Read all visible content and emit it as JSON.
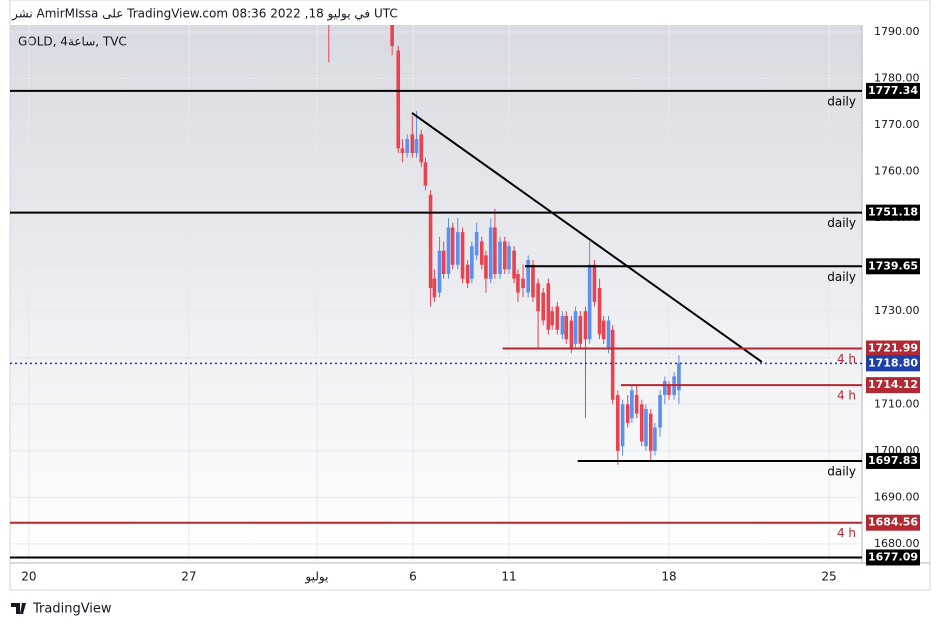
{
  "chart_data": {
    "type": "candlestick",
    "title": "نشر AmirMIssa على TradingView.com في يوليو 18, 2022 08:36 UTC",
    "subtitle": "GOLD, 4ساعة, TVC",
    "brand": "TradingView",
    "up_color": "#5b8ff0",
    "down_color": "#e8434f",
    "grid": true,
    "x": [
      9.37,
      11.35,
      11.54,
      11.67,
      11.82,
      11.98,
      12.11,
      12.26,
      12.39,
      12.55,
      12.67,
      12.83,
      12.96,
      13.11,
      13.24,
      13.4,
      13.55,
      13.71,
      13.84,
      13.99,
      14.15,
      14.28,
      14.43,
      14.56,
      14.72,
      14.87,
      15.0,
      15.16,
      15.28,
      15.44,
      15.6,
      15.75,
      15.91,
      16.07,
      16.23,
      16.35,
      16.51,
      16.67,
      16.79,
      16.95,
      17.08,
      17.23,
      17.39,
      17.52,
      17.67,
      17.83,
      17.96,
      18.11,
      18.24,
      18.4,
      18.55,
      18.71,
      18.84,
      18.99,
      19.15,
      19.28,
      19.43,
      19.56,
      19.72,
      19.87,
      20.0,
      20.16,
      20.31
    ],
    "open": [
      1800,
      1793,
      1786,
      1765,
      1764,
      1768,
      1764,
      1768,
      1762,
      1755,
      1737,
      1734,
      1743,
      1738,
      1748,
      1740,
      1747,
      1740,
      1737,
      1742,
      1745,
      1742,
      1737,
      1748,
      1738,
      1745,
      1739,
      1743,
      1738,
      1737,
      1734,
      1740,
      1736,
      1734,
      1736,
      1730,
      1731,
      1725,
      1729,
      1728,
      1723,
      1729,
      1730,
      1724,
      1740,
      1735,
      1728,
      1722,
      1726,
      1712,
      1701,
      1710,
      1707,
      1712,
      1710,
      1701,
      1708,
      1700,
      1705,
      1712,
      1714,
      1712,
      1713
    ],
    "high": [
      1802,
      1795,
      1787,
      1767,
      1768,
      1772,
      1773,
      1769,
      1763,
      1756,
      1739,
      1746,
      1745,
      1750,
      1749,
      1750,
      1748,
      1741,
      1745,
      1749,
      1746,
      1743,
      1750,
      1752,
      1746,
      1746,
      1745,
      1744,
      1739,
      1740,
      1742,
      1741,
      1737,
      1735,
      1737,
      1731,
      1732,
      1730,
      1730,
      1729,
      1731,
      1730,
      1731,
      1745,
      1741,
      1737,
      1729,
      1729,
      1727,
      1713,
      1711,
      1712,
      1714,
      1714,
      1711,
      1710,
      1709,
      1706,
      1713,
      1716,
      1715,
      1717,
      1720.5
    ],
    "low": [
      1783.5,
      1785,
      1764,
      1762,
      1763,
      1763,
      1763,
      1761,
      1756,
      1731,
      1732,
      1733,
      1737,
      1737,
      1739,
      1739,
      1736,
      1735,
      1736,
      1741,
      1739,
      1734,
      1736,
      1737,
      1737,
      1738,
      1738,
      1736,
      1732,
      1733,
      1733,
      1732,
      1722,
      1727,
      1725,
      1726,
      1725,
      1724,
      1723,
      1721,
      1722,
      1722,
      1707,
      1723,
      1731,
      1724,
      1723,
      1721,
      1710,
      1697,
      1699,
      1705,
      1706,
      1707,
      1701,
      1700,
      1698,
      1699,
      1703,
      1710,
      1711,
      1711,
      1710
    ],
    "close": [
      1794,
      1787,
      1765,
      1764,
      1767,
      1764,
      1767,
      1762,
      1757,
      1735,
      1733,
      1743,
      1738,
      1748,
      1740,
      1747,
      1737,
      1736,
      1744,
      1747,
      1740,
      1737,
      1748,
      1738,
      1745,
      1739,
      1744,
      1737,
      1734,
      1735,
      1741,
      1733,
      1730,
      1728,
      1726,
      1727,
      1726,
      1729,
      1724,
      1722,
      1730,
      1723,
      1724,
      1740,
      1732,
      1725,
      1724,
      1728,
      1711,
      1700,
      1710,
      1706,
      1713,
      1708,
      1702,
      1709,
      1700,
      1705,
      1712,
      1715,
      1712,
      1716,
      1718.8
    ],
    "xlim": [
      -0.59,
      26.03
    ],
    "xticks": [
      {
        "value": 0,
        "label": "20"
      },
      {
        "value": 5,
        "label": "27"
      },
      {
        "value": 9,
        "label": "يوليو"
      },
      {
        "value": 12,
        "label": "6"
      },
      {
        "value": 15,
        "label": "11"
      },
      {
        "value": 20,
        "label": "18"
      },
      {
        "value": 25,
        "label": "25"
      }
    ],
    "ylim": [
      1675.9,
      1791.5
    ],
    "yticks": [
      {
        "value": 1680,
        "label": "1680.00"
      },
      {
        "value": 1690,
        "label": "1690.00"
      },
      {
        "value": 1700,
        "label": "1700.00"
      },
      {
        "value": 1710,
        "label": "1710.00"
      },
      {
        "value": 1720,
        "label": "1720.00"
      },
      {
        "value": 1730,
        "label": "1730.00"
      },
      {
        "value": 1740,
        "label": "1740.00"
      },
      {
        "value": 1750,
        "label": "1750.00"
      },
      {
        "value": 1760,
        "label": "1760.00"
      },
      {
        "value": 1770,
        "label": "1770.00"
      },
      {
        "value": 1780,
        "label": "1780.00"
      },
      {
        "value": 1790,
        "label": "1790.00"
      }
    ],
    "levels": [
      {
        "value": 1777.34,
        "note": "daily",
        "color": "#000000"
      },
      {
        "value": 1751.18,
        "note": "daily",
        "color": "#000000"
      },
      {
        "value": 1739.65,
        "note": "daily",
        "color": "#000000",
        "x_start": 15.5
      },
      {
        "value": 1721.99,
        "note": "4 h",
        "color": "#b22833",
        "x_start": 14.8
      },
      {
        "value": 1714.12,
        "note": "4 h",
        "color": "#b22833",
        "x_start": 18.5
      },
      {
        "value": 1697.83,
        "note": "daily",
        "color": "#000000",
        "x_start": 17.15
      },
      {
        "value": 1684.56,
        "note": "4 h",
        "color": "#b22833"
      },
      {
        "value": 1677.09,
        "color": "#000000"
      }
    ],
    "last_price": {
      "value": 1718.8,
      "label": "1718.80",
      "color": "#1e3fa8"
    },
    "trendline": {
      "x": [
        11.97,
        22.9
      ],
      "y": [
        1772.6,
        1719.1
      ],
      "color": "#000000"
    }
  }
}
